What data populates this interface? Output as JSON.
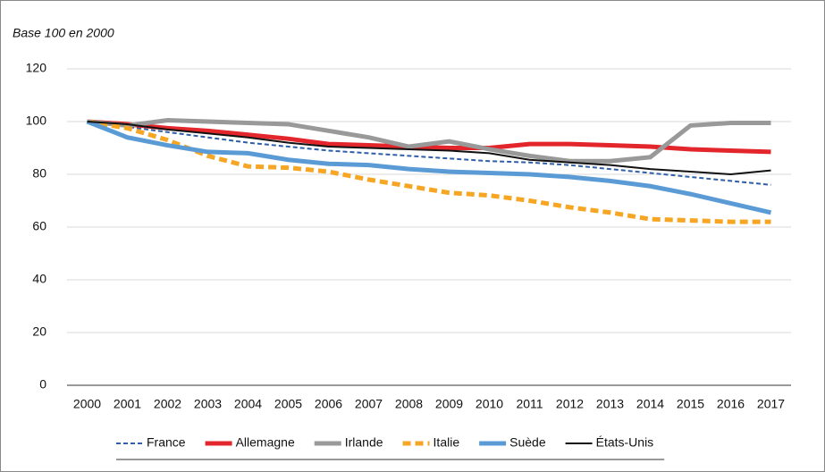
{
  "chart_data": {
    "type": "line",
    "subtitle": "Base 100 en 2000",
    "x": [
      2000,
      2001,
      2002,
      2003,
      2004,
      2005,
      2006,
      2007,
      2008,
      2009,
      2010,
      2011,
      2012,
      2013,
      2014,
      2015,
      2016,
      2017
    ],
    "xlim": [
      1999.5,
      2017.5
    ],
    "xticks": [
      2000,
      2001,
      2002,
      2003,
      2004,
      2005,
      2006,
      2007,
      2008,
      2009,
      2010,
      2011,
      2012,
      2013,
      2014,
      2015,
      2016,
      2017
    ],
    "ylim": [
      0,
      120
    ],
    "yticks": [
      0,
      20,
      40,
      60,
      80,
      100,
      120
    ],
    "grid": true,
    "legend": "bottom",
    "series": [
      {
        "name": "France",
        "color": "#2e5fa8",
        "dash": true,
        "weight": "thin",
        "values": [
          100,
          98,
          96,
          94,
          92,
          90.5,
          89,
          88,
          87,
          86,
          85,
          84.5,
          83.5,
          82,
          80.5,
          79,
          77.5,
          76
        ]
      },
      {
        "name": "Allemagne",
        "color": "#e3262b",
        "dash": false,
        "weight": "thick",
        "values": [
          100,
          99,
          97.5,
          96.5,
          95,
          93.5,
          91.5,
          91,
          90.5,
          90,
          90,
          91.5,
          91.5,
          91,
          90.5,
          89.5,
          89,
          88.5
        ]
      },
      {
        "name": "Irlande",
        "color": "#999999",
        "dash": false,
        "weight": "thick",
        "values": [
          100,
          98.5,
          100.5,
          100,
          99.5,
          99,
          96.5,
          94,
          90.5,
          92.5,
          89.5,
          87,
          85,
          85,
          86.5,
          98.5,
          99.5,
          99.5
        ]
      },
      {
        "name": "Italie",
        "color": "#f6a623",
        "dash": true,
        "weight": "thick",
        "values": [
          100,
          97.5,
          93,
          87,
          83,
          82.5,
          81,
          78,
          75.5,
          73,
          72,
          70,
          67.5,
          65.5,
          63,
          62.5,
          62,
          62
        ]
      },
      {
        "name": "Suède",
        "color": "#5b9bd5",
        "dash": false,
        "weight": "thick",
        "values": [
          100,
          94,
          91,
          88.5,
          88,
          85.5,
          84,
          83.5,
          82,
          81,
          80.5,
          80,
          79,
          77.5,
          75.5,
          72.5,
          69,
          65.5
        ]
      },
      {
        "name": "États-Unis",
        "color": "#111111",
        "dash": false,
        "weight": "thin",
        "values": [
          100,
          99,
          97,
          95.5,
          94,
          92,
          90.5,
          90,
          89.5,
          89,
          88,
          85.5,
          84.5,
          83.5,
          82,
          81,
          80,
          81.5
        ]
      }
    ]
  }
}
